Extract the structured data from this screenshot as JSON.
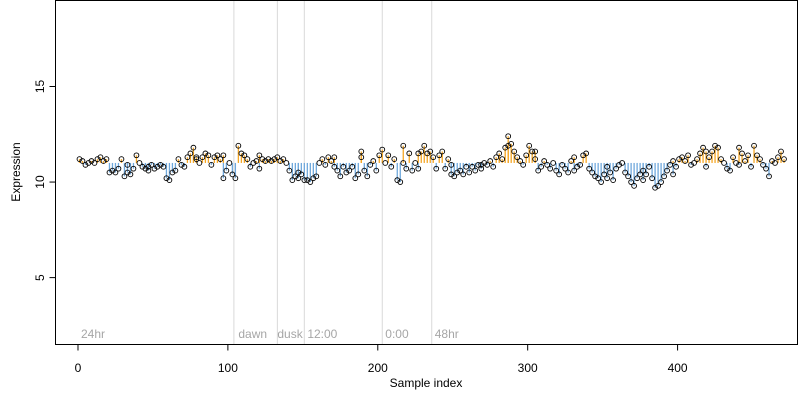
{
  "chart_data": {
    "type": "scatter",
    "title": "",
    "xlabel": "Sample index",
    "ylabel": "Expression",
    "xlim": [
      -15,
      480
    ],
    "ylim": [
      1.5,
      19.5
    ],
    "x_ticks": [
      0,
      100,
      200,
      300,
      400
    ],
    "y_ticks": [
      5,
      10,
      15
    ],
    "grid": false,
    "baseline": 11.0,
    "colors": {
      "above": "#f5a623",
      "below": "#6fa8dc",
      "marker_edge": "#000000",
      "divider": "#d9d9d9",
      "annotation": "#a6a6a6"
    },
    "annotations": [
      {
        "label": "24hr",
        "x": 2
      },
      {
        "label": "dawn",
        "x": 107
      },
      {
        "label": "dusk",
        "x": 133
      },
      {
        "label": "12:00",
        "x": 153
      },
      {
        "label": "0:00",
        "x": 205
      },
      {
        "label": "48hr",
        "x": 238
      }
    ],
    "dividers": [
      104,
      133,
      151,
      203,
      236
    ],
    "points": [
      [
        1,
        11.2
      ],
      [
        3,
        11.1
      ],
      [
        5,
        10.9
      ],
      [
        7,
        11.0
      ],
      [
        9,
        11.1
      ],
      [
        11,
        11.0
      ],
      [
        13,
        11.2
      ],
      [
        15,
        11.3
      ],
      [
        17,
        11.1
      ],
      [
        19,
        11.2
      ],
      [
        21,
        10.5
      ],
      [
        23,
        10.6
      ],
      [
        25,
        10.5
      ],
      [
        27,
        10.7
      ],
      [
        29,
        11.2
      ],
      [
        31,
        10.3
      ],
      [
        33,
        10.5
      ],
      [
        35,
        10.4
      ],
      [
        37,
        10.7
      ],
      [
        39,
        11.4
      ],
      [
        41,
        11.0
      ],
      [
        43,
        10.8
      ],
      [
        45,
        10.7
      ],
      [
        47,
        10.8
      ],
      [
        49,
        10.9
      ],
      [
        51,
        10.7
      ],
      [
        53,
        10.8
      ],
      [
        55,
        10.9
      ],
      [
        57,
        10.8
      ],
      [
        59,
        10.2
      ],
      [
        61,
        10.1
      ],
      [
        63,
        10.5
      ],
      [
        65,
        10.6
      ],
      [
        67,
        11.2
      ],
      [
        69,
        10.9
      ],
      [
        71,
        10.8
      ],
      [
        73,
        11.3
      ],
      [
        75,
        11.5
      ],
      [
        77,
        11.8
      ],
      [
        79,
        11.2
      ],
      [
        81,
        11.0
      ],
      [
        83,
        11.3
      ],
      [
        85,
        11.5
      ],
      [
        87,
        11.4
      ],
      [
        89,
        10.9
      ],
      [
        91,
        11.3
      ],
      [
        93,
        11.4
      ],
      [
        95,
        11.2
      ],
      [
        97,
        11.4
      ],
      [
        99,
        10.6
      ],
      [
        101,
        11.0
      ],
      [
        103,
        10.4
      ],
      [
        105,
        10.2
      ],
      [
        107,
        11.9
      ],
      [
        109,
        11.5
      ],
      [
        111,
        11.4
      ],
      [
        113,
        11.2
      ],
      [
        115,
        10.8
      ],
      [
        117,
        11.0
      ],
      [
        119,
        11.1
      ],
      [
        121,
        10.7
      ],
      [
        123,
        11.2
      ],
      [
        125,
        11.1
      ],
      [
        127,
        11.2
      ],
      [
        129,
        11.1
      ],
      [
        131,
        11.2
      ],
      [
        133,
        11.3
      ],
      [
        135,
        11.1
      ],
      [
        137,
        11.2
      ],
      [
        139,
        11.0
      ],
      [
        141,
        10.6
      ],
      [
        143,
        10.1
      ],
      [
        145,
        10.3
      ],
      [
        147,
        10.2
      ],
      [
        149,
        10.4
      ],
      [
        151,
        10.1
      ],
      [
        153,
        10.1
      ],
      [
        155,
        10.0
      ],
      [
        157,
        10.2
      ],
      [
        159,
        10.3
      ],
      [
        161,
        11.0
      ],
      [
        163,
        11.2
      ],
      [
        165,
        10.9
      ],
      [
        167,
        11.3
      ],
      [
        169,
        11.1
      ],
      [
        171,
        10.8
      ],
      [
        173,
        10.6
      ],
      [
        175,
        10.3
      ],
      [
        177,
        10.8
      ],
      [
        179,
        10.5
      ],
      [
        181,
        10.6
      ],
      [
        183,
        10.8
      ],
      [
        185,
        10.2
      ],
      [
        187,
        10.4
      ],
      [
        189,
        11.6
      ],
      [
        191,
        10.6
      ],
      [
        193,
        10.3
      ],
      [
        195,
        10.9
      ],
      [
        197,
        11.1
      ],
      [
        199,
        10.6
      ],
      [
        201,
        11.4
      ],
      [
        203,
        11.7
      ],
      [
        205,
        11.0
      ],
      [
        207,
        11.4
      ],
      [
        209,
        10.8
      ],
      [
        211,
        11.2
      ],
      [
        213,
        10.1
      ],
      [
        215,
        10.0
      ],
      [
        217,
        11.0
      ],
      [
        219,
        10.7
      ],
      [
        221,
        11.5
      ],
      [
        223,
        10.6
      ],
      [
        225,
        11.0
      ],
      [
        227,
        11.5
      ],
      [
        229,
        11.6
      ],
      [
        231,
        11.9
      ],
      [
        233,
        11.5
      ],
      [
        235,
        11.6
      ],
      [
        237,
        11.3
      ],
      [
        239,
        10.7
      ],
      [
        241,
        11.4
      ],
      [
        243,
        11.6
      ],
      [
        245,
        10.7
      ],
      [
        247,
        11.2
      ],
      [
        249,
        10.9
      ],
      [
        251,
        10.3
      ],
      [
        253,
        10.5
      ],
      [
        255,
        10.6
      ],
      [
        257,
        10.4
      ],
      [
        259,
        10.8
      ],
      [
        261,
        10.5
      ],
      [
        263,
        10.8
      ],
      [
        265,
        10.6
      ],
      [
        267,
        10.9
      ],
      [
        269,
        10.7
      ],
      [
        271,
        11.0
      ],
      [
        273,
        10.9
      ],
      [
        275,
        11.1
      ],
      [
        277,
        10.8
      ],
      [
        279,
        11.3
      ],
      [
        281,
        11.5
      ],
      [
        283,
        11.2
      ],
      [
        285,
        11.8
      ],
      [
        287,
        12.4
      ],
      [
        289,
        12.0
      ],
      [
        291,
        11.6
      ],
      [
        293,
        11.3
      ],
      [
        295,
        11.1
      ],
      [
        297,
        10.9
      ],
      [
        299,
        11.4
      ],
      [
        301,
        11.9
      ],
      [
        303,
        11.6
      ],
      [
        305,
        11.2
      ],
      [
        307,
        10.6
      ],
      [
        309,
        10.8
      ],
      [
        311,
        11.1
      ],
      [
        313,
        10.9
      ],
      [
        315,
        10.7
      ],
      [
        317,
        11.0
      ],
      [
        319,
        10.6
      ],
      [
        321,
        10.4
      ],
      [
        323,
        10.9
      ],
      [
        325,
        10.7
      ],
      [
        327,
        10.5
      ],
      [
        329,
        11.1
      ],
      [
        331,
        10.6
      ],
      [
        333,
        10.8
      ],
      [
        335,
        10.9
      ],
      [
        337,
        11.4
      ],
      [
        339,
        11.5
      ],
      [
        341,
        10.7
      ],
      [
        343,
        10.5
      ],
      [
        345,
        10.3
      ],
      [
        347,
        10.2
      ],
      [
        349,
        10.0
      ],
      [
        351,
        10.4
      ],
      [
        353,
        10.2
      ],
      [
        355,
        10.5
      ],
      [
        357,
        10.1
      ],
      [
        359,
        10.7
      ],
      [
        361,
        10.9
      ],
      [
        363,
        11.0
      ],
      [
        365,
        10.5
      ],
      [
        367,
        10.3
      ],
      [
        369,
        10.0
      ],
      [
        371,
        9.8
      ],
      [
        373,
        10.2
      ],
      [
        375,
        10.4
      ],
      [
        377,
        10.6
      ],
      [
        379,
        10.4
      ],
      [
        381,
        10.8
      ],
      [
        383,
        10.2
      ],
      [
        385,
        9.7
      ],
      [
        387,
        9.8
      ],
      [
        389,
        10.0
      ],
      [
        391,
        10.3
      ],
      [
        393,
        10.6
      ],
      [
        395,
        10.9
      ],
      [
        397,
        10.4
      ],
      [
        399,
        10.8
      ],
      [
        401,
        11.2
      ],
      [
        403,
        11.3
      ],
      [
        405,
        11.1
      ],
      [
        407,
        11.4
      ],
      [
        409,
        10.9
      ],
      [
        411,
        11.0
      ],
      [
        413,
        11.2
      ],
      [
        415,
        11.5
      ],
      [
        417,
        11.8
      ],
      [
        419,
        10.8
      ],
      [
        421,
        11.3
      ],
      [
        423,
        11.6
      ],
      [
        425,
        11.9
      ],
      [
        427,
        11.8
      ],
      [
        429,
        11.2
      ],
      [
        431,
        11.0
      ],
      [
        433,
        10.7
      ],
      [
        435,
        10.6
      ],
      [
        437,
        11.3
      ],
      [
        439,
        11.0
      ],
      [
        441,
        11.8
      ],
      [
        443,
        11.5
      ],
      [
        445,
        11.1
      ],
      [
        447,
        11.4
      ],
      [
        449,
        10.8
      ],
      [
        451,
        11.9
      ],
      [
        453,
        11.4
      ],
      [
        455,
        11.2
      ],
      [
        457,
        10.9
      ],
      [
        459,
        10.7
      ],
      [
        461,
        10.3
      ],
      [
        463,
        11.1
      ],
      [
        465,
        11.0
      ],
      [
        467,
        11.3
      ],
      [
        469,
        11.6
      ],
      [
        471,
        11.2
      ],
      [
        33,
        10.9
      ],
      [
        47,
        10.6
      ],
      [
        79,
        11.3
      ],
      [
        97,
        10.2
      ],
      [
        121,
        11.4
      ],
      [
        147,
        10.5
      ],
      [
        171,
        11.3
      ],
      [
        189,
        11.3
      ],
      [
        217,
        11.9
      ],
      [
        227,
        10.7
      ],
      [
        249,
        10.4
      ],
      [
        269,
        10.9
      ],
      [
        287,
        11.9
      ],
      [
        305,
        11.6
      ],
      [
        331,
        11.3
      ],
      [
        353,
        10.8
      ],
      [
        377,
        10.1
      ],
      [
        397,
        11.1
      ],
      [
        419,
        11.6
      ],
      [
        441,
        10.9
      ]
    ]
  }
}
